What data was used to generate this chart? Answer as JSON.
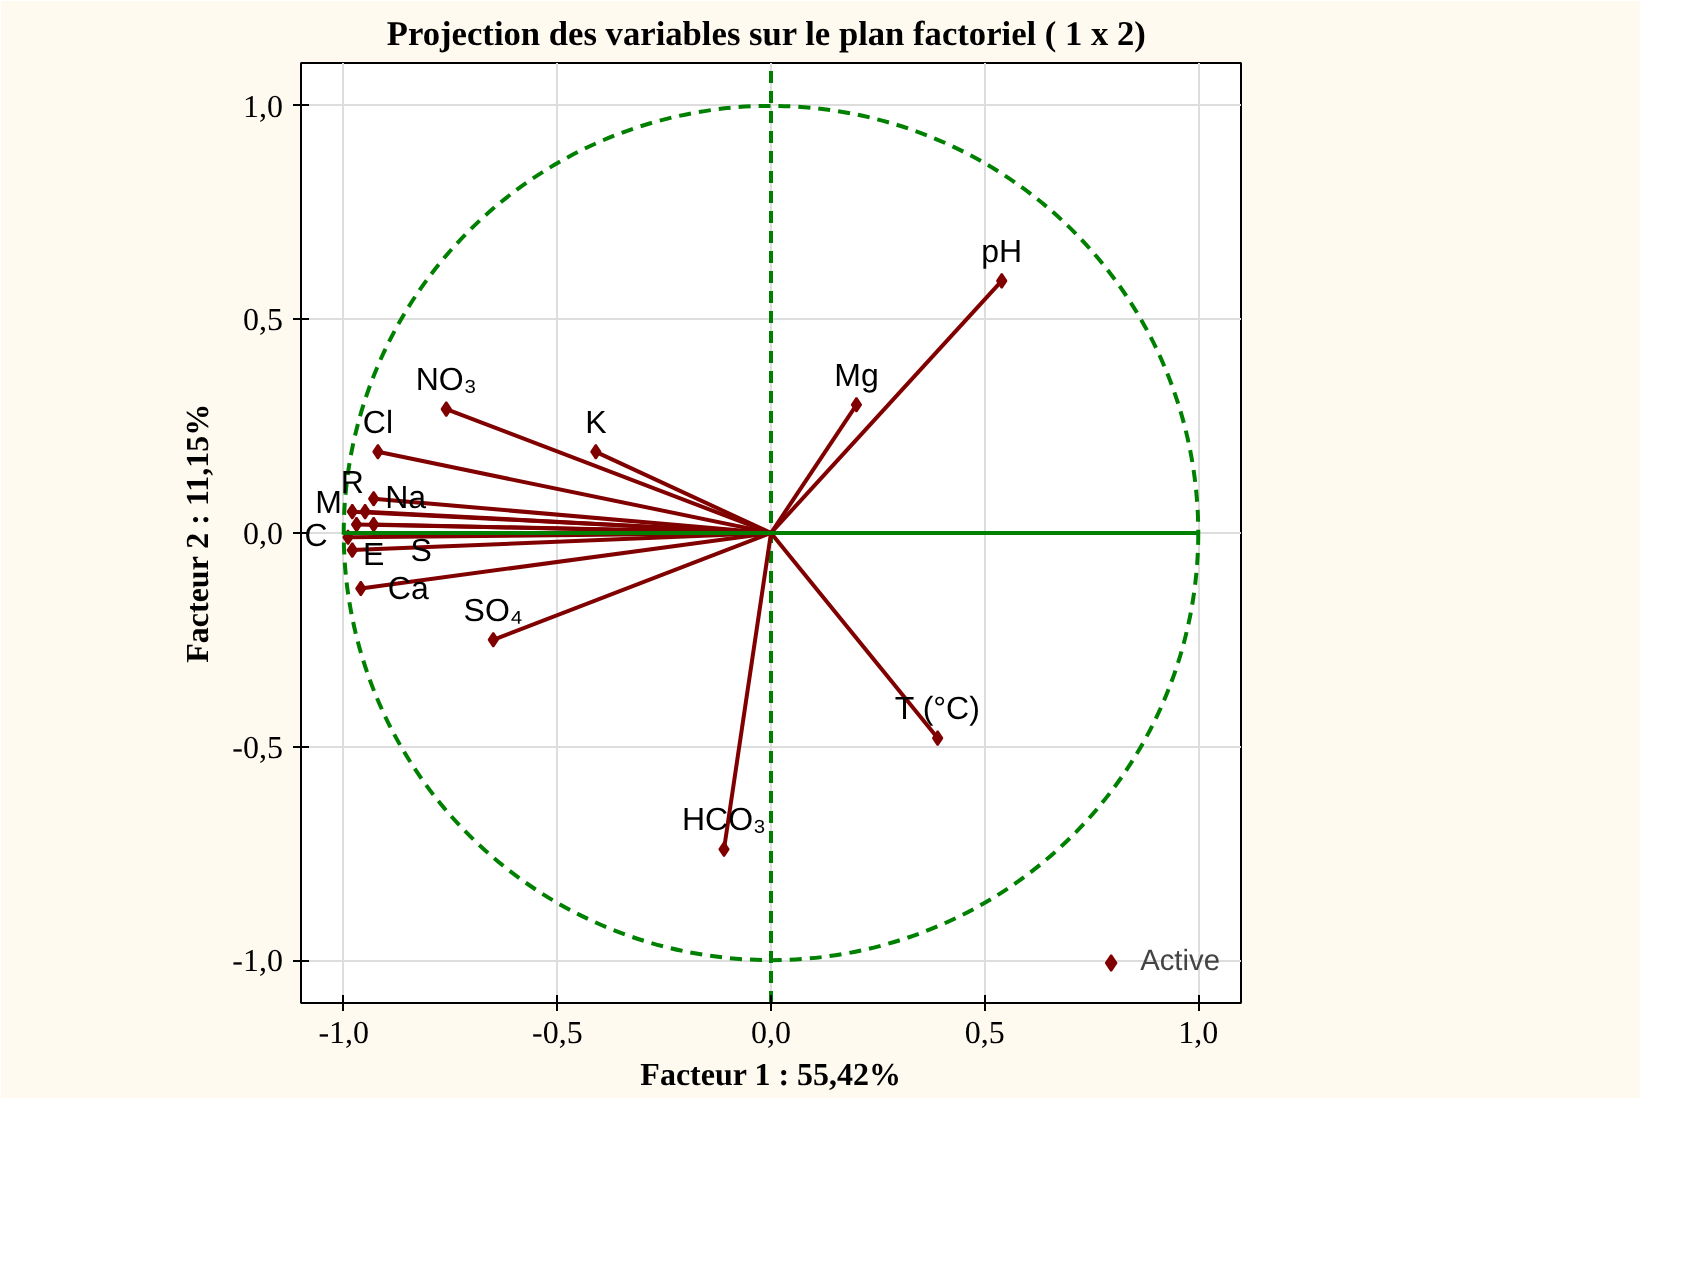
{
  "chart_data": {
    "type": "scatter",
    "title": "Projection des variables sur le plan factoriel ( 1 x  2)",
    "xlabel": "Facteur 1 : 55,42%",
    "ylabel": "Facteur 2 : 11,15%",
    "xlim": [
      -1.1,
      1.1
    ],
    "ylim": [
      -1.1,
      1.1
    ],
    "xticks": [
      {
        "value": -1,
        "label": "-1,0"
      },
      {
        "value": -0.5,
        "label": "-0,5"
      },
      {
        "value": 0,
        "label": "0,0"
      },
      {
        "value": 0.5,
        "label": "0,5"
      },
      {
        "value": 1,
        "label": "1,0"
      }
    ],
    "yticks": [
      {
        "value": -1,
        "label": "-1,0"
      },
      {
        "value": -0.5,
        "label": "-0,5"
      },
      {
        "value": 0,
        "label": "0,0"
      },
      {
        "value": 0.5,
        "label": "0,5"
      },
      {
        "value": 1,
        "label": "1,0"
      }
    ],
    "grid": true,
    "legend": "bottom right",
    "marker": "diamond",
    "series": [
      {
        "name": "Active",
        "color": "#800000",
        "x": [
          0.54,
          0.2,
          -0.41,
          -0.76,
          -0.92,
          -0.93,
          -0.95,
          -0.98,
          -0.93,
          -0.97,
          -0.99,
          -0.98,
          -0.96,
          -0.65,
          -0.11,
          0.39
        ],
        "values": [
          0.59,
          0.3,
          0.19,
          0.29,
          0.19,
          0.08,
          0.05,
          0.05,
          0.02,
          0.02,
          -0.01,
          -0.04,
          -0.13,
          -0.25,
          -0.74,
          -0.48
        ]
      },
      {
        "type": "line",
        "color": "#008000",
        "line_style": "solid",
        "marker": "none",
        "x": [
          -1,
          1
        ],
        "values": [
          0,
          0
        ]
      }
    ],
    "ref_lines": [
      {
        "axis": "x",
        "value": 0,
        "color": "#008000",
        "line_style": "dashed"
      }
    ],
    "annotations": [
      {
        "text": "pH",
        "x": 0.54,
        "y": 0.59
      },
      {
        "text": "Mg",
        "x": 0.2,
        "y": 0.3
      },
      {
        "text": "K",
        "x": -0.41,
        "y": 0.19
      },
      {
        "text": "NO₃",
        "x": -0.76,
        "y": 0.29
      },
      {
        "text": "Cl",
        "x": -0.92,
        "y": 0.19
      },
      {
        "text": "Na",
        "x": -0.93,
        "y": 0.08
      },
      {
        "text": "S",
        "x": -0.95,
        "y": 0.05
      },
      {
        "text": "R",
        "x": -0.98,
        "y": 0.05
      },
      {
        "text": "E",
        "x": -0.93,
        "y": 0.02
      },
      {
        "text": "M",
        "x": -0.97,
        "y": 0.02
      },
      {
        "text": "C",
        "x": -0.99,
        "y": -0.01
      },
      {
        "text": "Ca",
        "x": -0.98,
        "y": -0.04
      },
      {
        "text": "SO₄",
        "x": -0.65,
        "y": -0.25
      },
      {
        "text": "HCO₃",
        "x": -0.11,
        "y": -0.74
      },
      {
        "text": "T (°C)",
        "x": 0.39,
        "y": -0.48
      }
    ]
  }
}
